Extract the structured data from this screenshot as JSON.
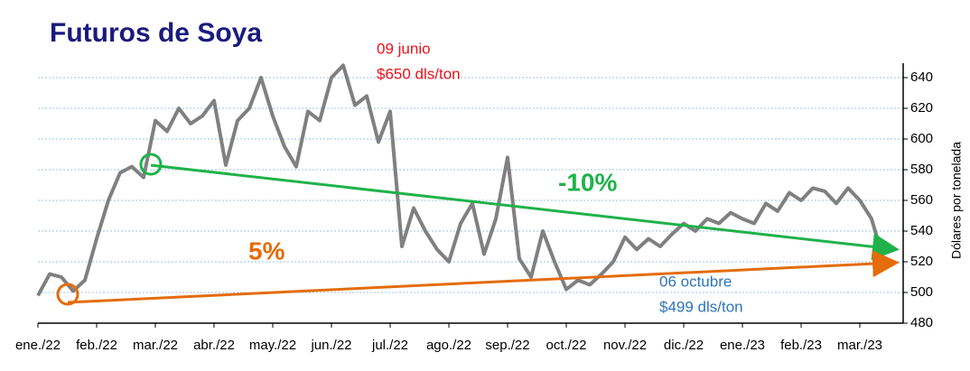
{
  "chart_data": {
    "type": "line",
    "title": "Futuros de Soya",
    "y_axis_label": "Dólares por tonelada",
    "categories": [
      "ene./22",
      null,
      null,
      null,
      null,
      "feb./22",
      null,
      null,
      null,
      null,
      "mar./22",
      null,
      null,
      null,
      null,
      "abr./22",
      null,
      null,
      null,
      null,
      "may./22",
      null,
      null,
      null,
      null,
      "jun./22",
      null,
      null,
      null,
      null,
      "jul./22",
      null,
      null,
      null,
      null,
      "ago./22",
      null,
      null,
      null,
      null,
      "sep./22",
      null,
      null,
      null,
      null,
      "oct./22",
      null,
      null,
      null,
      null,
      "nov./22",
      null,
      null,
      null,
      null,
      "dic./22",
      null,
      null,
      null,
      null,
      "ene./23",
      null,
      null,
      null,
      null,
      "feb./23",
      null,
      null,
      null,
      null,
      "mar./23",
      null,
      null
    ],
    "series": [
      {
        "name": "Soya",
        "color": "#808080",
        "values": [
          498,
          512,
          510,
          501,
          508,
          535,
          560,
          578,
          582,
          575,
          612,
          605,
          620,
          610,
          615,
          625,
          583,
          612,
          620,
          640,
          615,
          595,
          582,
          618,
          612,
          640,
          648,
          622,
          628,
          598,
          618,
          530,
          555,
          540,
          528,
          520,
          545,
          558,
          525,
          548,
          588,
          522,
          510,
          540,
          520,
          502,
          508,
          505,
          512,
          520,
          536,
          528,
          535,
          530,
          538,
          545,
          540,
          548,
          545,
          552,
          548,
          545,
          558,
          553,
          565,
          560,
          568,
          566,
          558,
          568,
          560,
          548,
          522
        ]
      }
    ],
    "ylim": [
      480,
      650
    ],
    "yticks": [
      480,
      500,
      520,
      540,
      560,
      580,
      600,
      620,
      640
    ],
    "grid": true,
    "annotations": [
      {
        "text": [
          "09 junio",
          "$650 dls/ton"
        ],
        "color": "#e8141c"
      },
      {
        "text": [
          "06 octubre",
          "$499 dls/ton"
        ],
        "color": "#2e75b6"
      },
      {
        "text": "-10%",
        "color": "#1fb24a"
      },
      {
        "text": "5%",
        "color": "#e46c0a"
      }
    ]
  }
}
